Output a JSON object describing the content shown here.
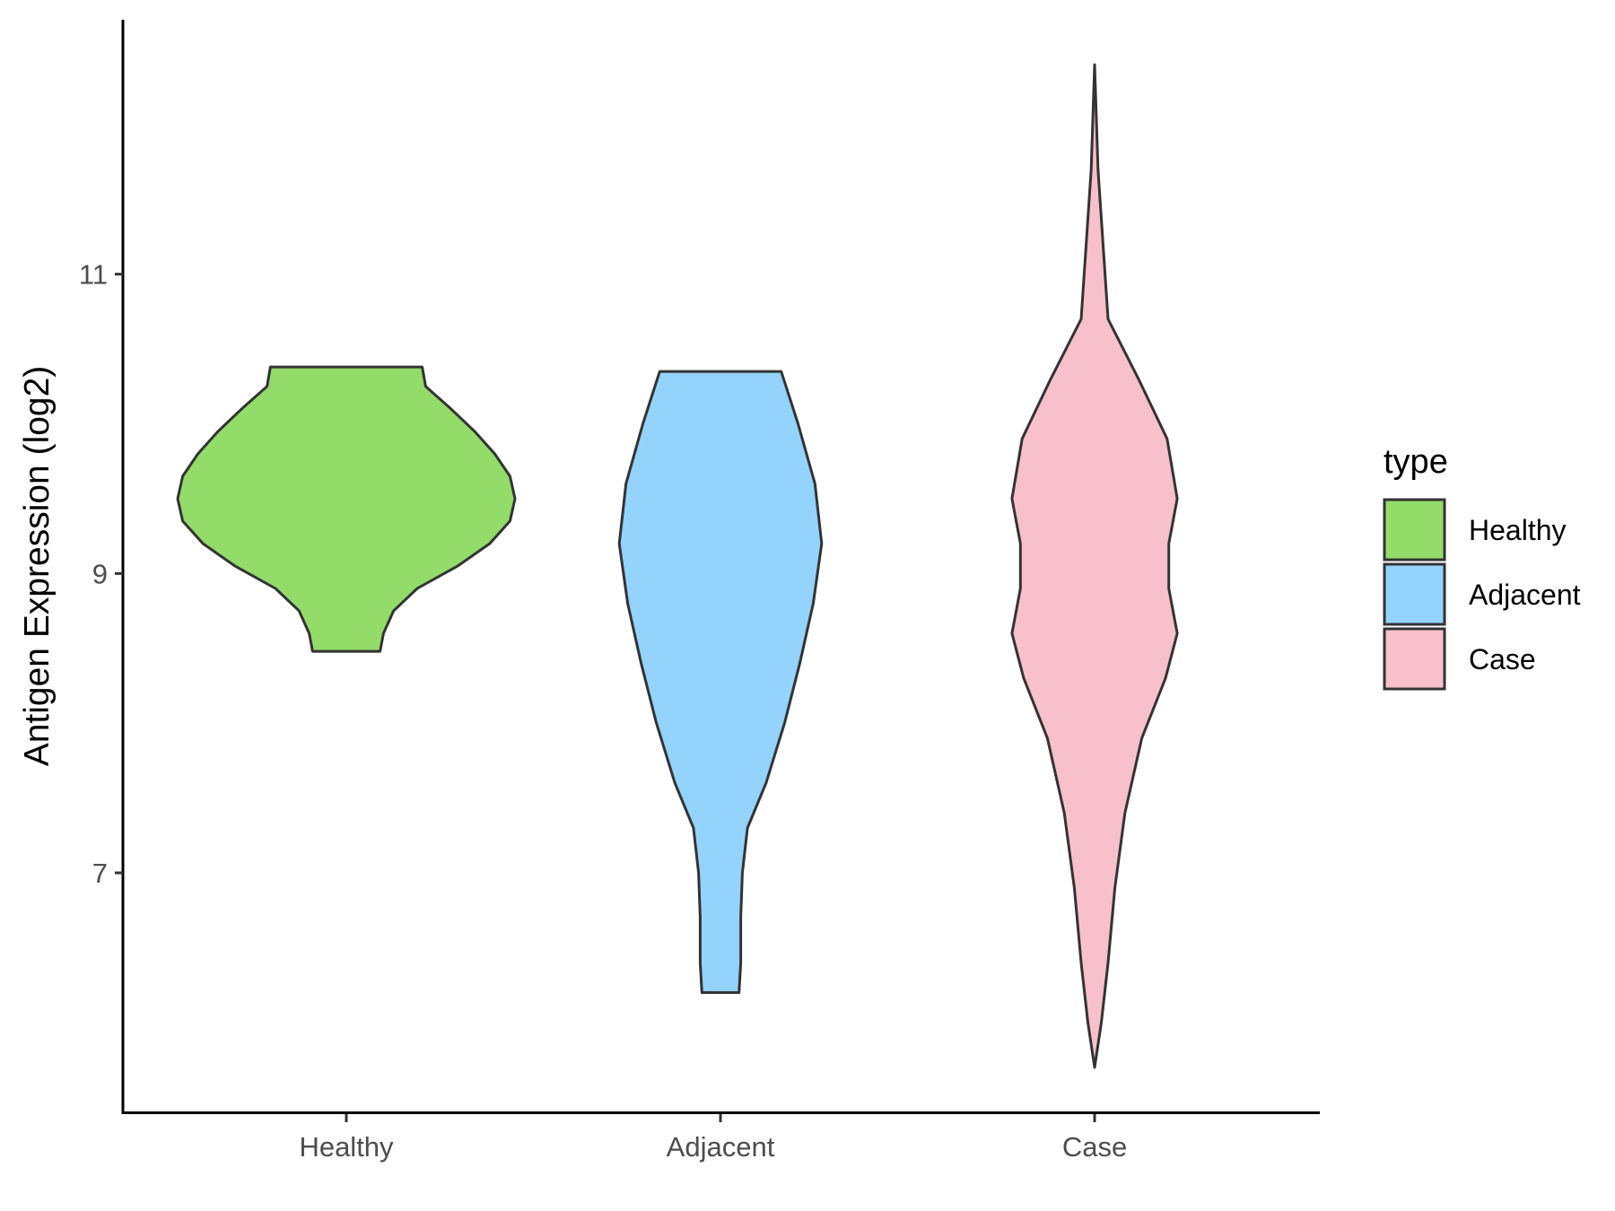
{
  "chart_data": {
    "type": "violin",
    "title": "",
    "xlabel": "",
    "ylabel": "Antigen Expression (log2)",
    "ylim": [
      5.4,
      12.7
    ],
    "yticks": [
      7,
      9,
      11
    ],
    "categories": [
      "Healthy",
      "Adjacent",
      "Case"
    ],
    "grid": false,
    "legend": {
      "title": "type",
      "position": "right",
      "items": [
        {
          "label": "Healthy",
          "color": "#93dc6a"
        },
        {
          "label": "Adjacent",
          "color": "#93d3fc"
        },
        {
          "label": "Case",
          "color": "#f8c0cb"
        }
      ]
    },
    "series": [
      {
        "name": "Healthy",
        "color": "#93dc6a",
        "min": 8.48,
        "max": 10.38,
        "profile": [
          [
            8.48,
            0.2
          ],
          [
            8.6,
            0.22
          ],
          [
            8.75,
            0.28
          ],
          [
            8.9,
            0.42
          ],
          [
            9.05,
            0.66
          ],
          [
            9.2,
            0.85
          ],
          [
            9.35,
            0.97
          ],
          [
            9.5,
            1.0
          ],
          [
            9.65,
            0.97
          ],
          [
            9.8,
            0.88
          ],
          [
            9.95,
            0.76
          ],
          [
            10.1,
            0.62
          ],
          [
            10.25,
            0.47
          ],
          [
            10.38,
            0.45
          ]
        ]
      },
      {
        "name": "Adjacent",
        "color": "#93d3fc",
        "min": 6.2,
        "max": 10.35,
        "profile": [
          [
            6.2,
            0.11
          ],
          [
            6.4,
            0.12
          ],
          [
            6.7,
            0.12
          ],
          [
            7.0,
            0.13
          ],
          [
            7.3,
            0.16
          ],
          [
            7.6,
            0.27
          ],
          [
            8.0,
            0.38
          ],
          [
            8.4,
            0.47
          ],
          [
            8.8,
            0.55
          ],
          [
            9.2,
            0.6
          ],
          [
            9.6,
            0.56
          ],
          [
            10.0,
            0.46
          ],
          [
            10.35,
            0.36
          ]
        ]
      },
      {
        "name": "Case",
        "color": "#f8c0cb",
        "min": 5.7,
        "max": 12.4,
        "profile": [
          [
            5.7,
            0.0
          ],
          [
            6.0,
            0.04
          ],
          [
            6.4,
            0.08
          ],
          [
            6.9,
            0.12
          ],
          [
            7.4,
            0.18
          ],
          [
            7.9,
            0.28
          ],
          [
            8.3,
            0.42
          ],
          [
            8.6,
            0.49
          ],
          [
            8.9,
            0.44
          ],
          [
            9.2,
            0.44
          ],
          [
            9.5,
            0.49
          ],
          [
            9.9,
            0.43
          ],
          [
            10.3,
            0.26
          ],
          [
            10.7,
            0.08
          ],
          [
            11.2,
            0.05
          ],
          [
            11.7,
            0.02
          ],
          [
            12.4,
            0.0
          ]
        ]
      }
    ]
  }
}
